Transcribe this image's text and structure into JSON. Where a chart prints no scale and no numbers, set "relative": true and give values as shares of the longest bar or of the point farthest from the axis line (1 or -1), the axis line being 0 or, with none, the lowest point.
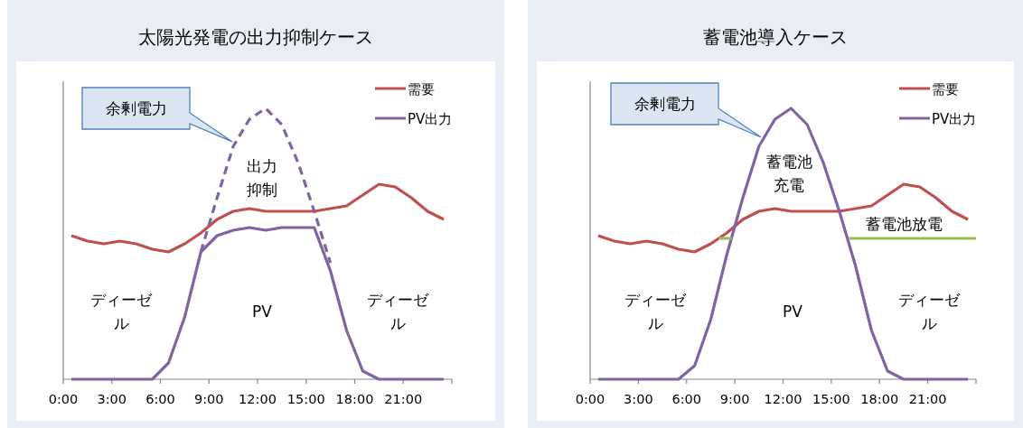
{
  "chart_data": [
    {
      "type": "line",
      "title": "太陽光発電の出力抑制ケース",
      "relative": true,
      "legend": "top right",
      "tick_labels": "x",
      "x": [
        0.5,
        1.5,
        2.5,
        3.5,
        4.5,
        5.5,
        6.5,
        7.5,
        8.5,
        9.5,
        10.5,
        11.5,
        12.5,
        13.5,
        14.5,
        15.5,
        16.5,
        17.5,
        18.5,
        19.5,
        20.5,
        21.5,
        22.5,
        23.5
      ],
      "xlim": [
        0,
        24
      ],
      "xticks": [
        {
          "value": 0,
          "label": "0:00"
        },
        {
          "value": 3,
          "label": "3:00"
        },
        {
          "value": 6,
          "label": "6:00"
        },
        {
          "value": 9,
          "label": "9:00"
        },
        {
          "value": 12,
          "label": "12:00"
        },
        {
          "value": 15,
          "label": "15:00"
        },
        {
          "value": 18,
          "label": "18:00"
        },
        {
          "value": 21,
          "label": "21:00"
        },
        {
          "value": 24,
          "label": null
        }
      ],
      "series": [
        {
          "name": "需要",
          "color": "#c0504d",
          "values": [
            0.53,
            0.51,
            0.5,
            0.51,
            0.5,
            0.48,
            0.47,
            0.5,
            0.54,
            0.59,
            0.62,
            0.63,
            0.62,
            0.62,
            0.62,
            0.62,
            0.63,
            0.64,
            0.68,
            0.72,
            0.71,
            0.67,
            0.62,
            0.59
          ]
        },
        {
          "name": "PV出力",
          "color": "#8064a2",
          "values": [
            0,
            0,
            0,
            0,
            0,
            0,
            0.06,
            0.23,
            0.47,
            0.53,
            0.55,
            0.56,
            0.55,
            0.56,
            0.56,
            0.56,
            0.4,
            0.18,
            0.03,
            0,
            0,
            0,
            0,
            0
          ]
        },
        {
          "color": "#8064a2",
          "line_style": "dashed",
          "values": [
            null,
            null,
            null,
            null,
            null,
            null,
            null,
            null,
            0.47,
            0.67,
            0.86,
            0.96,
            1.0,
            0.94,
            0.8,
            0.62,
            0.43,
            null,
            null,
            null,
            null,
            null,
            null,
            null
          ]
        }
      ],
      "annotations": [
        "余剰電力",
        "出力抑制",
        "ディーゼル",
        "PV",
        "ディーゼル"
      ]
    },
    {
      "type": "line",
      "title": "蓄電池導入ケース",
      "relative": true,
      "legend": "top right",
      "tick_labels": "x",
      "x": [
        0.5,
        1.5,
        2.5,
        3.5,
        4.5,
        5.5,
        6.5,
        7.5,
        8.5,
        9.5,
        10.5,
        11.5,
        12.5,
        13.5,
        14.5,
        15.5,
        16.5,
        17.5,
        18.5,
        19.5,
        20.5,
        21.5,
        22.5,
        23.5
      ],
      "xlim": [
        0,
        24
      ],
      "xticks": [
        {
          "value": 0,
          "label": "0:00"
        },
        {
          "value": 3,
          "label": "3:00"
        },
        {
          "value": 6,
          "label": "6:00"
        },
        {
          "value": 9,
          "label": "9:00"
        },
        {
          "value": 12,
          "label": "12:00"
        },
        {
          "value": 15,
          "label": "15:00"
        },
        {
          "value": 18,
          "label": "18:00"
        },
        {
          "value": 21,
          "label": "21:00"
        },
        {
          "value": 24,
          "label": null
        }
      ],
      "series": [
        {
          "name": "需要",
          "color": "#c0504d",
          "values": [
            0.53,
            0.51,
            0.5,
            0.51,
            0.5,
            0.48,
            0.47,
            0.5,
            0.54,
            0.59,
            0.62,
            0.63,
            0.62,
            0.62,
            0.62,
            0.62,
            0.63,
            0.64,
            0.68,
            0.72,
            0.71,
            0.67,
            0.62,
            0.59
          ]
        },
        {
          "name": "PV出力",
          "color": "#8064a2",
          "values": [
            0,
            0,
            0,
            0,
            0,
            0,
            0.05,
            0.22,
            0.46,
            0.67,
            0.86,
            0.96,
            1.0,
            0.94,
            0.8,
            0.62,
            0.42,
            0.18,
            0.03,
            0,
            0,
            0,
            0,
            0
          ]
        },
        {
          "color": "#9bbb59",
          "x": [
            8,
            8.8
          ],
          "values": [
            0.52,
            0.52
          ]
        },
        {
          "color": "#9bbb59",
          "x": [
            16.1,
            24
          ],
          "values": [
            0.52,
            0.52
          ]
        }
      ],
      "annotations": [
        "余剰電力",
        "蓄電池充電",
        "蓄電池放電",
        "ディーゼル",
        "PV",
        "ディーゼル"
      ]
    }
  ]
}
